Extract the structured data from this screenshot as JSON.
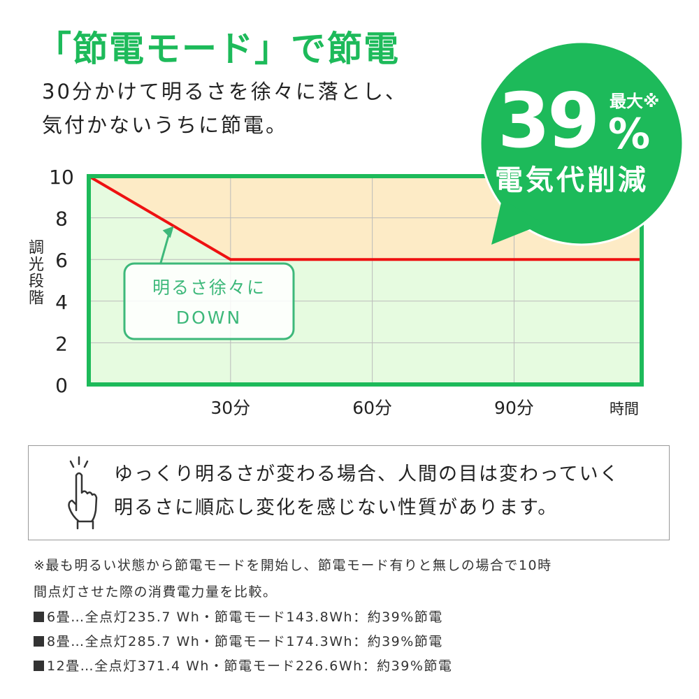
{
  "header": {
    "title": "「節電モード」で節電",
    "subtitle_lines": [
      "30分かけて明るさを徐々に落とし、",
      "気付かないうちに節電。"
    ]
  },
  "badge": {
    "value": "39",
    "prefix": "最大※",
    "unit": "%",
    "caption": "電気代削減",
    "color": "#1dba5a"
  },
  "chart_data": {
    "type": "line",
    "ylabel": "調光段階",
    "xlabel": "時間",
    "y_ticks": [
      "0",
      "2",
      "4",
      "6",
      "8",
      "10"
    ],
    "x_ticks": [
      {
        "value": 30,
        "label": "30分"
      },
      {
        "value": 60,
        "label": "60分"
      },
      {
        "value": 90,
        "label": "90分"
      }
    ],
    "ylim": [
      0,
      10
    ],
    "xlim": [
      0,
      117
    ],
    "grid": true,
    "series": [
      {
        "x": [
          0,
          30,
          117
        ],
        "y": [
          10,
          6,
          6
        ],
        "color": "#ee1111"
      }
    ],
    "fill_above_color": "#fdebc6",
    "fill_below_color": "#e6fbe0",
    "frame_color": "#1dba5a",
    "annotation": {
      "lines": [
        "明るさ徐々に",
        "DOWN"
      ],
      "color": "#3db87a",
      "points_to": {
        "x": 18,
        "y": 7.6
      }
    }
  },
  "note": {
    "icon": "pointing-hand-icon",
    "lines": [
      "ゆっくり明るさが変わる場合、人間の目は変わっていく",
      "明るさに順応し変化を感じない性質があります。"
    ]
  },
  "footnote": {
    "lines": [
      "※最も明るい状態から節電モードを開始し、節電モード有りと無しの場合で10時",
      "間点灯させた際の消費電力量を比較。"
    ],
    "items": [
      "6畳…全点灯235.7 Wh・節電モード143.8Wh：約39%節電",
      "8畳…全点灯285.7 Wh・節電モード174.3Wh：約39%節電",
      "12畳…全点灯371.4 Wh・節電モード226.6Wh：約39%節電"
    ]
  }
}
